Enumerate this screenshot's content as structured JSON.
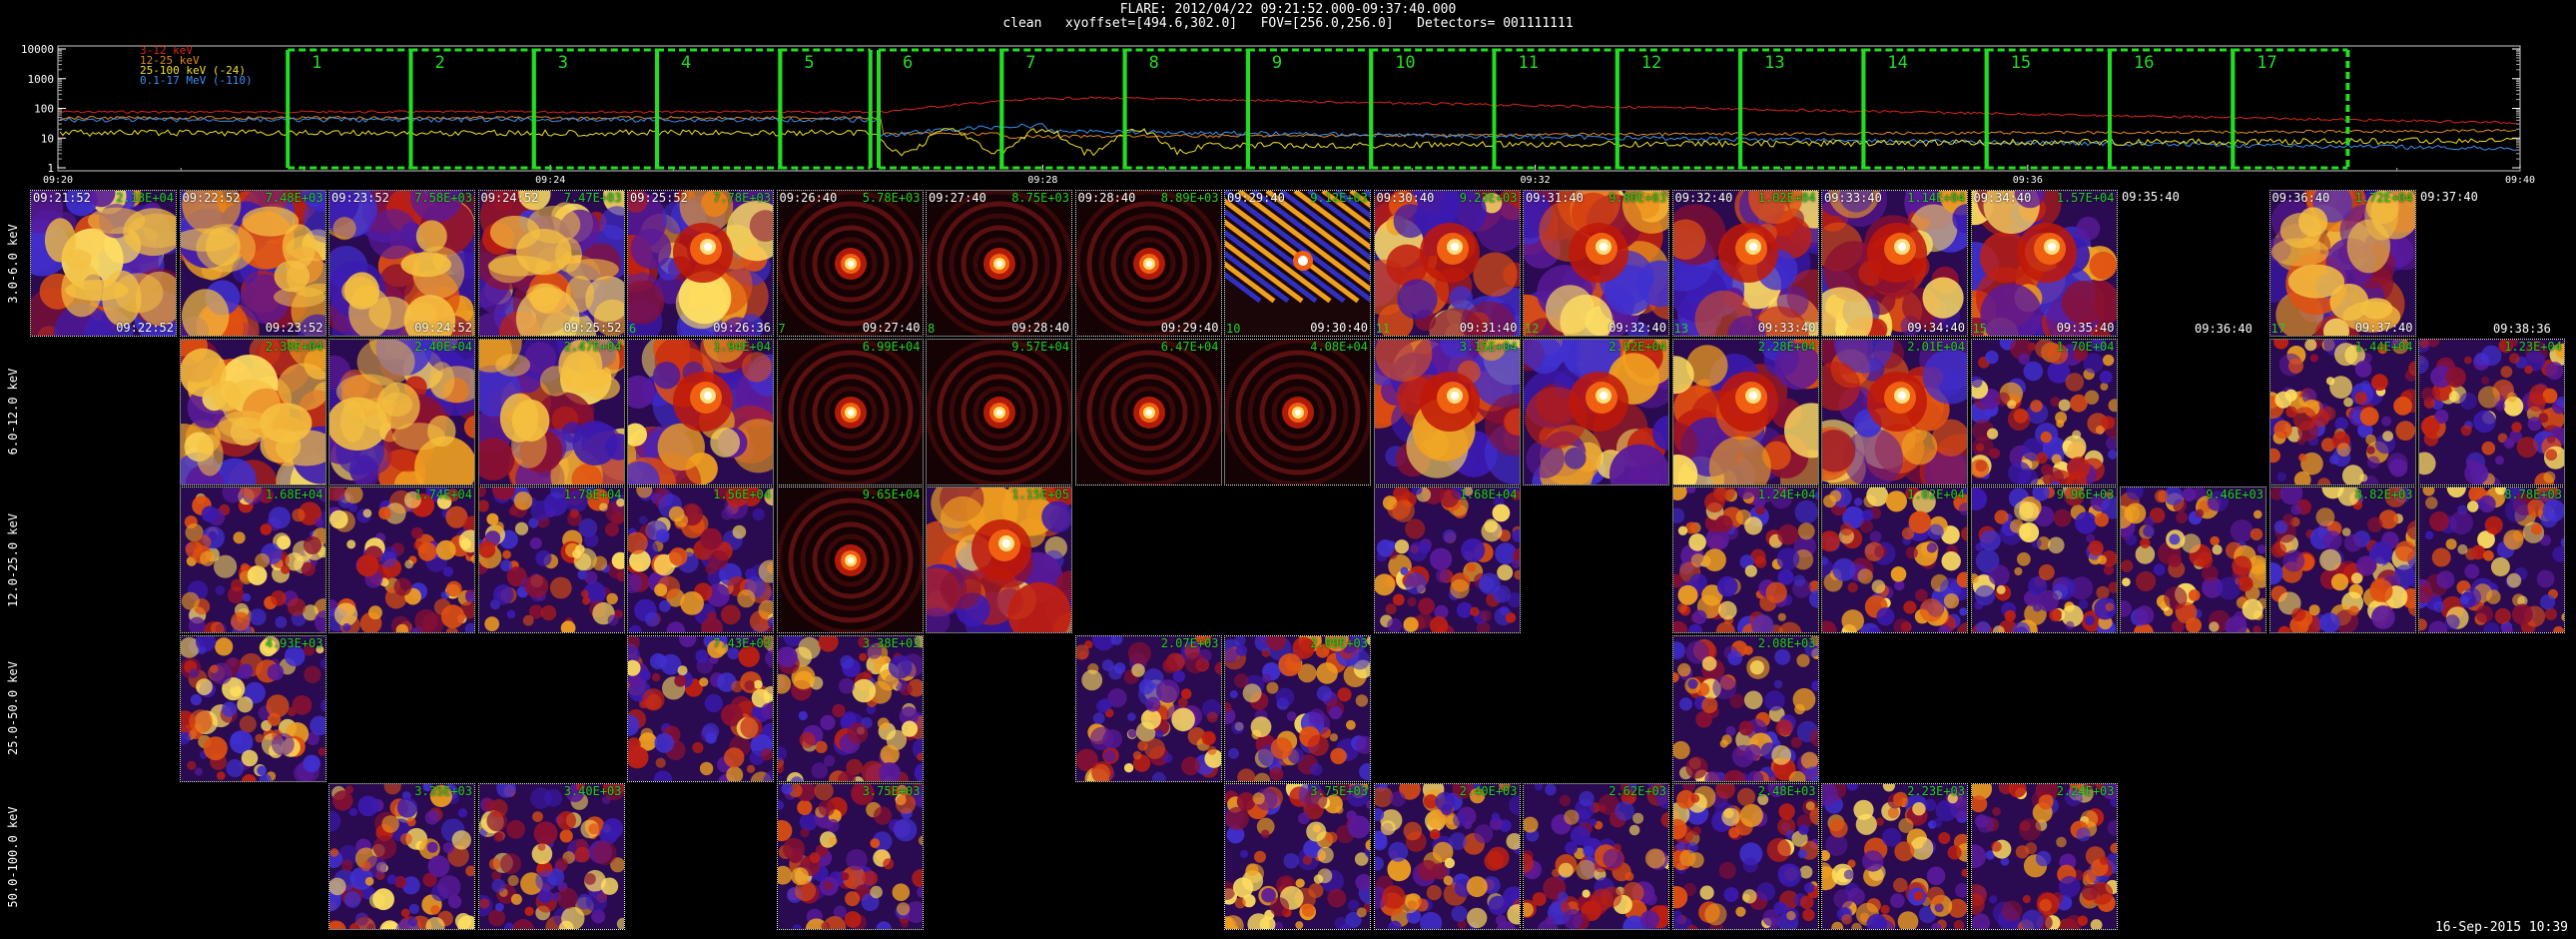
{
  "header": {
    "title": "FLARE: 2012/04/22 09:21:52.000-09:37:40.000",
    "subtitle": "clean   xyoffset=[494.6,302.0]   FOV=[256.0,256.0]   Detectors= 001111111"
  },
  "lightcurve": {
    "y_ticks": [
      "10000",
      "1000",
      "100",
      "10",
      "1"
    ],
    "x_ticks": [
      "09:20",
      "09:24",
      "09:28",
      "09:32",
      "09:36",
      "09:40"
    ],
    "legend": [
      {
        "label": "3-12 keV",
        "color": "#d8261c"
      },
      {
        "label": "12-25 keV",
        "color": "#e08a1c"
      },
      {
        "label": "25-100 keV (-24)",
        "color": "#f0e020"
      },
      {
        "label": "0.1-17 MeV (-110)",
        "color": "#3a8ff0"
      }
    ],
    "intervals": [
      "1",
      "2",
      "3",
      "4",
      "5",
      "6",
      "7",
      "8",
      "9",
      "10",
      "11",
      "12",
      "13",
      "14",
      "15",
      "16",
      "17"
    ],
    "interval_color": "#22dd22"
  },
  "rows": [
    {
      "label": "3.0-6.0 keV"
    },
    {
      "label": "6.0-12.0 keV"
    },
    {
      "label": "12.0-25.0 keV"
    },
    {
      "label": "25.0-50.0 keV"
    },
    {
      "label": "50.0-100.0 keV"
    }
  ],
  "columns": [
    {
      "start": "09:21:52",
      "end": "09:22:52"
    },
    {
      "start": "09:22:52",
      "end": "09:23:52"
    },
    {
      "start": "09:23:52",
      "end": "09:24:52"
    },
    {
      "start": "09:24:52",
      "end": "09:25:52"
    },
    {
      "start": "09:25:52",
      "end": "09:26:36"
    },
    {
      "start": "09:26:40",
      "end": "09:27:40"
    },
    {
      "start": "09:27:40",
      "end": "09:28:40"
    },
    {
      "start": "09:28:40",
      "end": "09:29:40"
    },
    {
      "start": "09:29:40",
      "end": "09:30:40"
    },
    {
      "start": "09:30:40",
      "end": "09:31:40"
    },
    {
      "start": "09:31:40",
      "end": "09:32:40"
    },
    {
      "start": "09:32:40",
      "end": "09:33:40"
    },
    {
      "start": "09:33:40",
      "end": "09:34:40"
    },
    {
      "start": "09:34:40",
      "end": "09:35:40"
    },
    {
      "start": "09:35:40",
      "end": "09:36:40"
    },
    {
      "start": "09:36:40",
      "end": "09:37:40"
    },
    {
      "start": "09:37:40",
      "end": "09:38:36"
    }
  ],
  "cells": [
    {
      "row": 0,
      "col": 0,
      "start": "09:21:52",
      "end": "09:22:52",
      "max": "2.18E+04",
      "kind": "diffuse",
      "seed": 11
    },
    {
      "row": 0,
      "col": 1,
      "start": "09:22:52",
      "end": "09:23:52",
      "max": "7.48E+03",
      "kind": "diffuse",
      "seed": 12
    },
    {
      "row": 0,
      "col": 2,
      "start": "09:23:52",
      "end": "09:24:52",
      "max": "7.58E+03",
      "kind": "diffuse",
      "seed": 13
    },
    {
      "row": 0,
      "col": 3,
      "start": "09:24:52",
      "end": "09:25:52",
      "max": "7.47E+03",
      "kind": "diffuse",
      "seed": 14
    },
    {
      "row": 0,
      "col": 4,
      "start": "09:25:52",
      "end": "09:26:36",
      "max": "7.78E+03",
      "kind": "source",
      "seed": 15
    },
    {
      "row": 0,
      "col": 5,
      "start": "09:26:40",
      "end": "09:27:40",
      "max": "5.78E+03",
      "kind": "point",
      "seed": 16
    },
    {
      "row": 0,
      "col": 6,
      "start": "09:27:40",
      "end": "09:28:40",
      "max": "8.75E+03",
      "kind": "point",
      "seed": 17
    },
    {
      "row": 0,
      "col": 7,
      "start": "09:28:40",
      "end": "09:29:40",
      "max": "8.89E+03",
      "kind": "point",
      "seed": 18
    },
    {
      "row": 0,
      "col": 8,
      "start": "09:29:40",
      "end": "09:30:40",
      "max": "9.12E+03",
      "kind": "stripes",
      "seed": 19
    },
    {
      "row": 0,
      "col": 9,
      "start": "09:30:40",
      "end": "09:31:40",
      "max": "9.23E+03",
      "kind": "source",
      "seed": 20
    },
    {
      "row": 0,
      "col": 10,
      "start": "09:31:40",
      "end": "09:32:40",
      "max": "9.80E+03",
      "kind": "source",
      "seed": 21
    },
    {
      "row": 0,
      "col": 11,
      "start": "09:32:40",
      "end": "09:33:40",
      "max": "1.02E+04",
      "kind": "source",
      "seed": 22
    },
    {
      "row": 0,
      "col": 12,
      "start": "09:33:40",
      "end": "09:34:40",
      "max": "1.14E+04",
      "kind": "source",
      "seed": 23
    },
    {
      "row": 0,
      "col": 13,
      "start": "09:34:40",
      "end": "09:35:40",
      "max": "1.57E+04",
      "kind": "source",
      "seed": 24
    },
    {
      "row": 0,
      "col": 15,
      "start": "09:36:40",
      "end": "09:37:40",
      "max": "1.72E+04",
      "kind": "diffuse",
      "seed": 25
    },
    {
      "row": 1,
      "col": 1,
      "start": "",
      "end": "",
      "max": "2.38E+04",
      "kind": "diffuse",
      "seed": 31
    },
    {
      "row": 1,
      "col": 2,
      "start": "",
      "end": "",
      "max": "2.40E+04",
      "kind": "diffuse",
      "seed": 32
    },
    {
      "row": 1,
      "col": 3,
      "start": "",
      "end": "",
      "max": "2.47E+04",
      "kind": "diffuse",
      "seed": 33
    },
    {
      "row": 1,
      "col": 4,
      "start": "",
      "end": "",
      "max": "1.94E+04",
      "kind": "source",
      "seed": 34
    },
    {
      "row": 1,
      "col": 5,
      "start": "",
      "end": "",
      "max": "6.99E+04",
      "kind": "point",
      "seed": 35
    },
    {
      "row": 1,
      "col": 6,
      "start": "",
      "end": "",
      "max": "9.57E+04",
      "kind": "point",
      "seed": 36
    },
    {
      "row": 1,
      "col": 7,
      "start": "",
      "end": "",
      "max": "6.47E+04",
      "kind": "point",
      "seed": 37
    },
    {
      "row": 1,
      "col": 8,
      "start": "",
      "end": "",
      "max": "4.08E+04",
      "kind": "point",
      "seed": 38
    },
    {
      "row": 1,
      "col": 9,
      "start": "",
      "end": "",
      "max": "3.15E+04",
      "kind": "source",
      "seed": 39
    },
    {
      "row": 1,
      "col": 10,
      "start": "",
      "end": "",
      "max": "2.92E+04",
      "kind": "source",
      "seed": 40
    },
    {
      "row": 1,
      "col": 11,
      "start": "",
      "end": "",
      "max": "2.28E+04",
      "kind": "source",
      "seed": 41
    },
    {
      "row": 1,
      "col": 12,
      "start": "",
      "end": "",
      "max": "2.01E+04",
      "kind": "source",
      "seed": 42
    },
    {
      "row": 1,
      "col": 13,
      "start": "",
      "end": "",
      "max": "1.70E+04",
      "kind": "noise",
      "seed": 43
    },
    {
      "row": 1,
      "col": 15,
      "start": "",
      "end": "",
      "max": "1.44E+04",
      "kind": "noise",
      "seed": 44
    },
    {
      "row": 1,
      "col": 16,
      "start": "",
      "end": "",
      "max": "1.23E+04",
      "kind": "noise",
      "seed": 45
    },
    {
      "row": 2,
      "col": 1,
      "start": "",
      "end": "",
      "max": "1.68E+04",
      "kind": "noise",
      "seed": 51
    },
    {
      "row": 2,
      "col": 2,
      "start": "",
      "end": "",
      "max": "1.74E+04",
      "kind": "noise",
      "seed": 52
    },
    {
      "row": 2,
      "col": 3,
      "start": "",
      "end": "",
      "max": "1.78E+04",
      "kind": "noise",
      "seed": 53
    },
    {
      "row": 2,
      "col": 4,
      "start": "",
      "end": "",
      "max": "1.56E+04",
      "kind": "noise",
      "seed": 54
    },
    {
      "row": 2,
      "col": 5,
      "start": "",
      "end": "",
      "max": "9.65E+04",
      "kind": "point",
      "seed": 55
    },
    {
      "row": 2,
      "col": 6,
      "start": "",
      "end": "",
      "max": "1.15E+05",
      "kind": "source",
      "seed": 56
    },
    {
      "row": 2,
      "col": 9,
      "start": "",
      "end": "",
      "max": "1.68E+04",
      "kind": "noise",
      "seed": 57
    },
    {
      "row": 2,
      "col": 11,
      "start": "",
      "end": "",
      "max": "1.24E+04",
      "kind": "noise",
      "seed": 58
    },
    {
      "row": 2,
      "col": 12,
      "start": "",
      "end": "",
      "max": "1.02E+04",
      "kind": "noise",
      "seed": 59
    },
    {
      "row": 2,
      "col": 13,
      "start": "",
      "end": "",
      "max": "9.96E+03",
      "kind": "noise",
      "seed": 60
    },
    {
      "row": 2,
      "col": 14,
      "start": "",
      "end": "",
      "max": "9.46E+03",
      "kind": "noise",
      "seed": 61
    },
    {
      "row": 2,
      "col": 15,
      "start": "",
      "end": "",
      "max": "8.82E+03",
      "kind": "noise",
      "seed": 62
    },
    {
      "row": 2,
      "col": 16,
      "start": "",
      "end": "",
      "max": "8.78E+03",
      "kind": "noise",
      "seed": 63
    },
    {
      "row": 3,
      "col": 1,
      "start": "",
      "end": "",
      "max": "4.93E+03",
      "kind": "noise",
      "seed": 71
    },
    {
      "row": 3,
      "col": 4,
      "start": "",
      "end": "",
      "max": "7.43E+03",
      "kind": "noise",
      "seed": 72
    },
    {
      "row": 3,
      "col": 5,
      "start": "",
      "end": "",
      "max": "3.38E+03",
      "kind": "noise",
      "seed": 73
    },
    {
      "row": 3,
      "col": 7,
      "start": "",
      "end": "",
      "max": "2.07E+03",
      "kind": "noise",
      "seed": 74
    },
    {
      "row": 3,
      "col": 8,
      "start": "",
      "end": "",
      "max": "2.09E+03",
      "kind": "noise",
      "seed": 75
    },
    {
      "row": 3,
      "col": 11,
      "start": "",
      "end": "",
      "max": "2.08E+03",
      "kind": "noise",
      "seed": 76
    },
    {
      "row": 4,
      "col": 2,
      "start": "",
      "end": "",
      "max": "3.35E+03",
      "kind": "noise",
      "seed": 81
    },
    {
      "row": 4,
      "col": 3,
      "start": "",
      "end": "",
      "max": "3.40E+03",
      "kind": "noise",
      "seed": 82
    },
    {
      "row": 4,
      "col": 5,
      "start": "",
      "end": "",
      "max": "3.75E+03",
      "kind": "noise",
      "seed": 83
    },
    {
      "row": 4,
      "col": 8,
      "start": "",
      "end": "",
      "max": "3.75E+03",
      "kind": "noise",
      "seed": 84
    },
    {
      "row": 4,
      "col": 9,
      "start": "",
      "end": "",
      "max": "2.40E+03",
      "kind": "noise",
      "seed": 85
    },
    {
      "row": 4,
      "col": 10,
      "start": "",
      "end": "",
      "max": "2.62E+03",
      "kind": "noise",
      "seed": 86
    },
    {
      "row": 4,
      "col": 11,
      "start": "",
      "end": "",
      "max": "2.48E+03",
      "kind": "noise",
      "seed": 87
    },
    {
      "row": 4,
      "col": 12,
      "start": "",
      "end": "",
      "max": "2.23E+03",
      "kind": "noise",
      "seed": 88
    },
    {
      "row": 4,
      "col": 13,
      "start": "",
      "end": "",
      "max": "2.24E+03",
      "kind": "noise",
      "seed": 89
    }
  ],
  "bottom_left_numbers": [
    {
      "col": 4,
      "text": "6"
    },
    {
      "col": 5,
      "text": "7"
    },
    {
      "col": 6,
      "text": "8"
    },
    {
      "col": 8,
      "text": "10"
    },
    {
      "col": 9,
      "text": "11"
    },
    {
      "col": 10,
      "text": "12"
    },
    {
      "col": 11,
      "text": "13"
    },
    {
      "col": 13,
      "text": "15"
    },
    {
      "col": 15,
      "text": "17"
    }
  ],
  "footer": {
    "timestamp": "16-Sep-2015 10:39"
  }
}
